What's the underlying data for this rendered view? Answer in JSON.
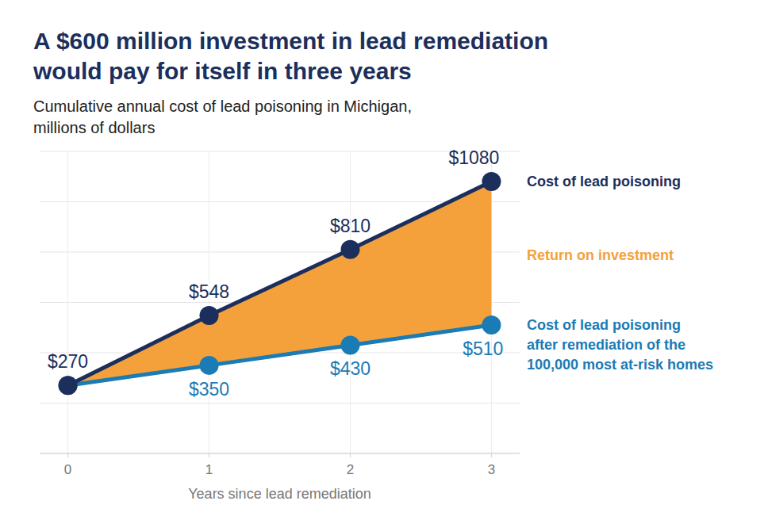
{
  "chart_data": {
    "type": "line",
    "title": "A $600 million investment in lead remediation would pay for itself in three years",
    "subtitle": "Cumulative annual cost of lead poisoning in Michigan, millions of dollars",
    "x_label": "Years since lead remediation",
    "x": [
      0,
      1,
      2,
      3
    ],
    "xlim": [
      -0.2,
      3.2
    ],
    "xticks": [
      0,
      1,
      2,
      3
    ],
    "ylim": [
      0,
      1200
    ],
    "yticks": [
      0,
      200,
      400,
      600,
      800,
      1000,
      1200
    ],
    "grid": true,
    "tick_labels": "x",
    "data_labels": true,
    "series": [
      {
        "name": "Cost of lead poisoning",
        "color": "#1c2f5c",
        "marker": "circle",
        "values": [
          270,
          548,
          810,
          1080
        ],
        "value_labels": [
          "$270",
          "$548",
          "$810",
          "$1080"
        ]
      },
      {
        "name": "Cost of lead poisoning after remediation of the 100,000 most at-risk homes",
        "color": "#1b7bb5",
        "marker": "circle",
        "values": [
          270,
          350,
          430,
          510
        ],
        "value_labels": [
          null,
          "$350",
          "$430",
          "$510"
        ]
      }
    ],
    "annotations": [
      {
        "text": "Return on investment",
        "color": "#f5a13b"
      }
    ]
  }
}
